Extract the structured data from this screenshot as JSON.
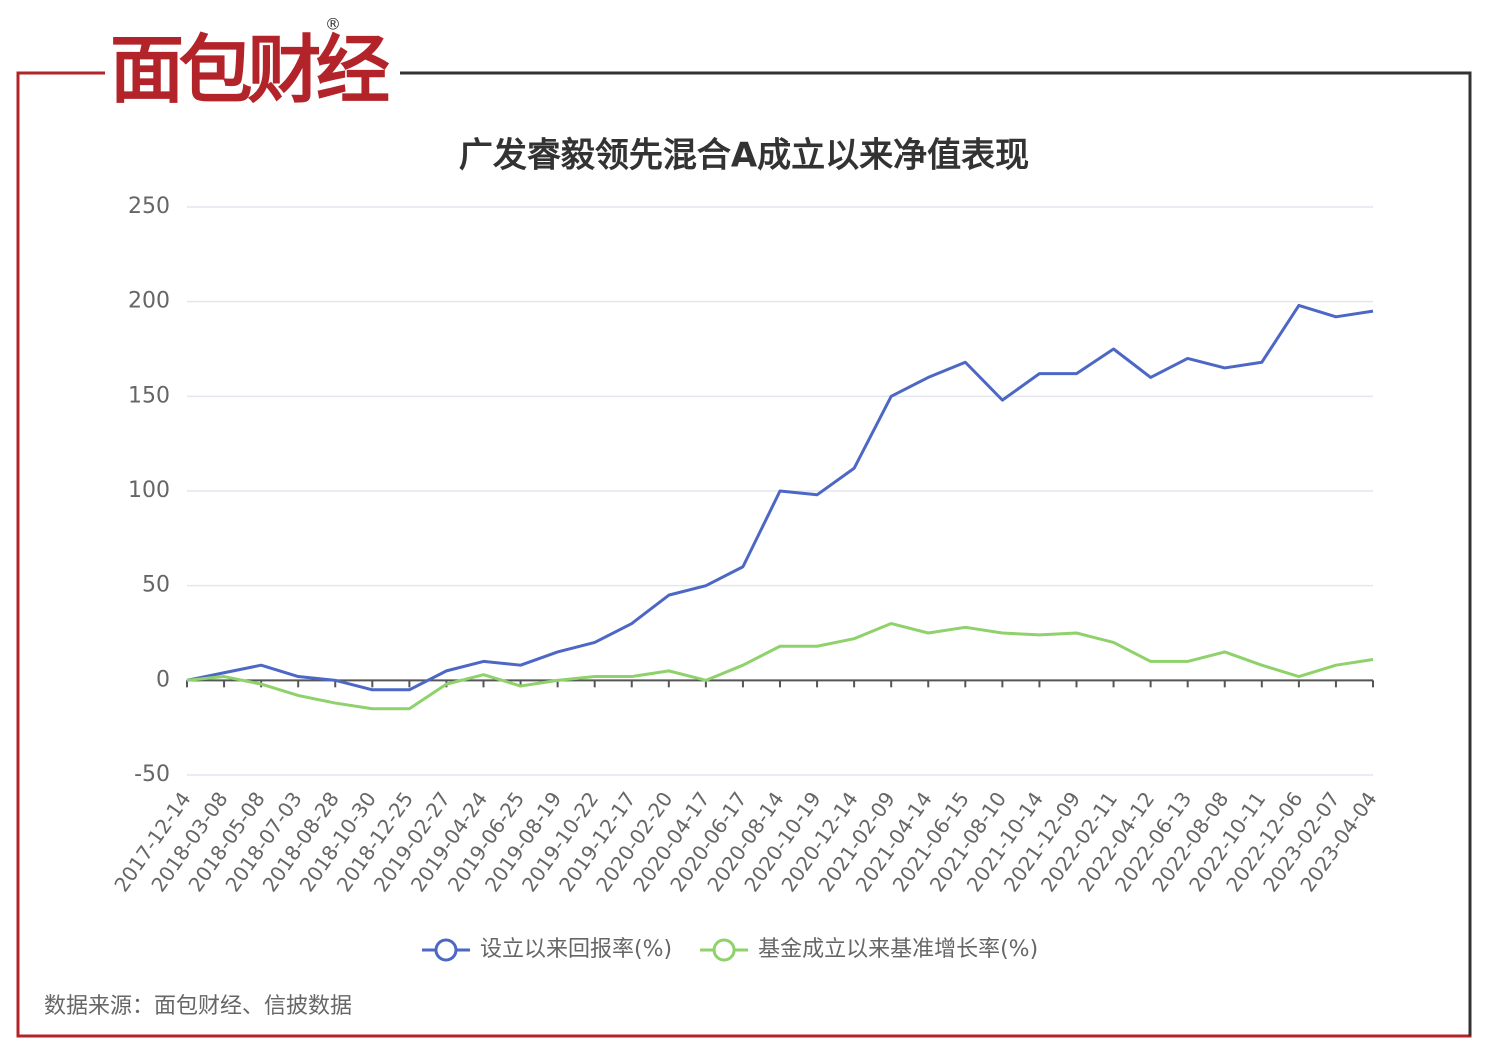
{
  "header": {
    "logo": "面包财经",
    "trademark": "®"
  },
  "chart_data": {
    "type": "line",
    "title": "广发睿毅领先混合A成立以来净值表现",
    "categories": [
      "2017-12-14",
      "2018-03-08",
      "2018-05-08",
      "2018-07-03",
      "2018-08-28",
      "2018-10-30",
      "2018-12-25",
      "2019-02-27",
      "2019-04-24",
      "2019-06-25",
      "2019-08-19",
      "2019-10-22",
      "2019-12-17",
      "2020-02-20",
      "2020-04-17",
      "2020-06-17",
      "2020-08-14",
      "2020-10-19",
      "2020-12-14",
      "2021-02-09",
      "2021-04-14",
      "2021-06-15",
      "2021-08-10",
      "2021-10-14",
      "2021-12-09",
      "2022-02-11",
      "2022-04-12",
      "2022-06-13",
      "2022-08-08",
      "2022-10-11",
      "2022-12-06",
      "2023-02-07",
      "2023-04-04"
    ],
    "series": [
      {
        "name": "设立以来回报率(%)",
        "color": "#4c67c4",
        "values": [
          0,
          4,
          8,
          2,
          0,
          -5,
          -5,
          5,
          10,
          8,
          15,
          20,
          30,
          45,
          50,
          60,
          100,
          98,
          112,
          150,
          160,
          168,
          148,
          162,
          162,
          175,
          160,
          170,
          165,
          168,
          198,
          192,
          195
        ]
      },
      {
        "name": "基金成立以来基准增长率(%)",
        "color": "#8fd16a",
        "values": [
          0,
          2,
          -2,
          -8,
          -12,
          -15,
          -15,
          -2,
          3,
          -3,
          0,
          2,
          2,
          5,
          0,
          8,
          18,
          18,
          22,
          30,
          25,
          28,
          25,
          24,
          25,
          20,
          10,
          10,
          15,
          8,
          2,
          8,
          11
        ]
      }
    ],
    "ylim": [
      -50,
      250
    ],
    "yticks": [
      -50,
      0,
      50,
      100,
      150,
      200,
      250
    ],
    "grid": true,
    "legend": "bottom"
  },
  "footer": {
    "source": "数据来源：面包财经、信披数据"
  }
}
